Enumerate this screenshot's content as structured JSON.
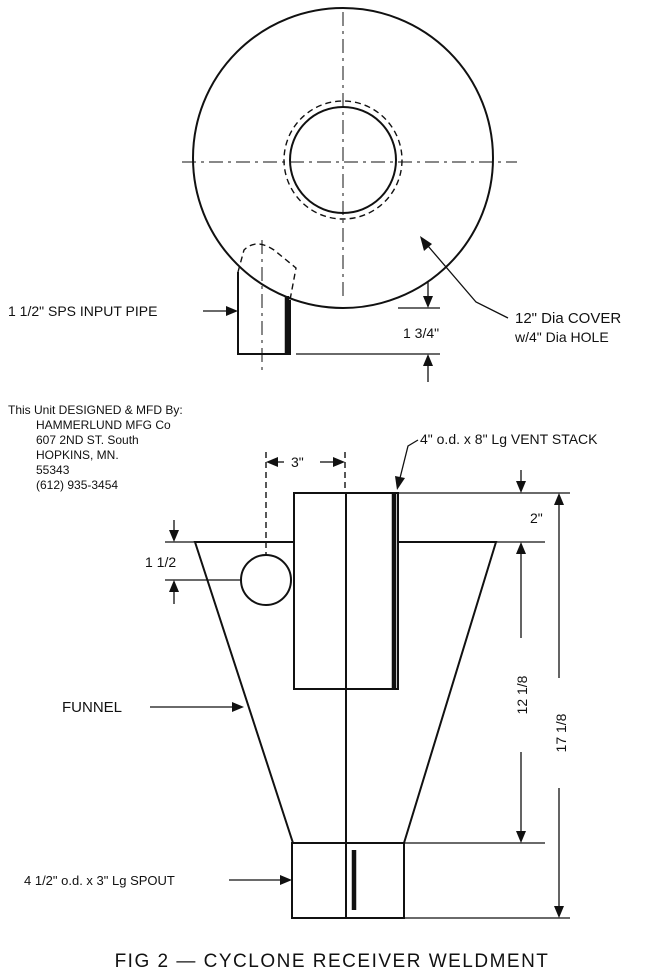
{
  "labels": {
    "input_pipe": "1 1/2\" SPS INPUT PIPE",
    "cover_line1": "12\" Dia COVER",
    "cover_line2": "w/4\" Dia HOLE",
    "dim_1_3_4": "1 3/4\"",
    "designer": [
      "This Unit DESIGNED & MFD By:",
      "HAMMERLUND MFG Co",
      "607 2ND ST. South",
      "HOPKINS, MN.",
      "55343",
      "(612) 935-3454"
    ],
    "vent_stack": "4\" o.d. x 8\" Lg VENT STACK",
    "dim_3": "3\"",
    "dim_2": "2\"",
    "dim_1_1_2": "1 1/2",
    "dim_12_1_8": "12 1/8",
    "dim_17_1_8": "17 1/8",
    "funnel": "FUNNEL",
    "spout": "4 1/2\" o.d. x 3\" Lg SPOUT",
    "caption": "FIG 2 — CYCLONE RECEIVER WELDMENT"
  }
}
